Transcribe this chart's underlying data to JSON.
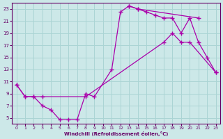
{
  "background_color": "#cce8e8",
  "grid_color": "#aad4d4",
  "line_color": "#aa00aa",
  "tick_color": "#660066",
  "xlabel": "Windchill (Refroidissement éolien,°C)",
  "xlim": [
    -0.5,
    23.5
  ],
  "ylim": [
    4,
    24
  ],
  "xticks": [
    0,
    1,
    2,
    3,
    4,
    5,
    6,
    7,
    8,
    9,
    10,
    11,
    12,
    13,
    14,
    15,
    16,
    17,
    18,
    19,
    20,
    21,
    22,
    23
  ],
  "yticks": [
    5,
    7,
    9,
    11,
    13,
    15,
    17,
    19,
    21,
    23
  ],
  "curve1_x": [
    0,
    1,
    2,
    3,
    4,
    5,
    6,
    7,
    8,
    9,
    11,
    12,
    13,
    14,
    21
  ],
  "curve1_y": [
    10.5,
    8.5,
    8.5,
    7.0,
    6.3,
    4.7,
    4.7,
    4.7,
    9.0,
    8.5,
    13.0,
    22.5,
    23.5,
    23.0,
    21.5
  ],
  "curve2_x": [
    13,
    14,
    15,
    16,
    17,
    18,
    19,
    20,
    21,
    22,
    23
  ],
  "curve2_y": [
    23.5,
    23.0,
    22.5,
    22.0,
    21.5,
    21.5,
    19.0,
    21.5,
    17.5,
    15.0,
    12.5
  ],
  "curve3_x": [
    0,
    1,
    2,
    3,
    8,
    17,
    18,
    19,
    20,
    23
  ],
  "curve3_y": [
    10.5,
    8.5,
    8.5,
    8.5,
    8.5,
    17.5,
    19.0,
    17.5,
    17.5,
    12.5
  ]
}
